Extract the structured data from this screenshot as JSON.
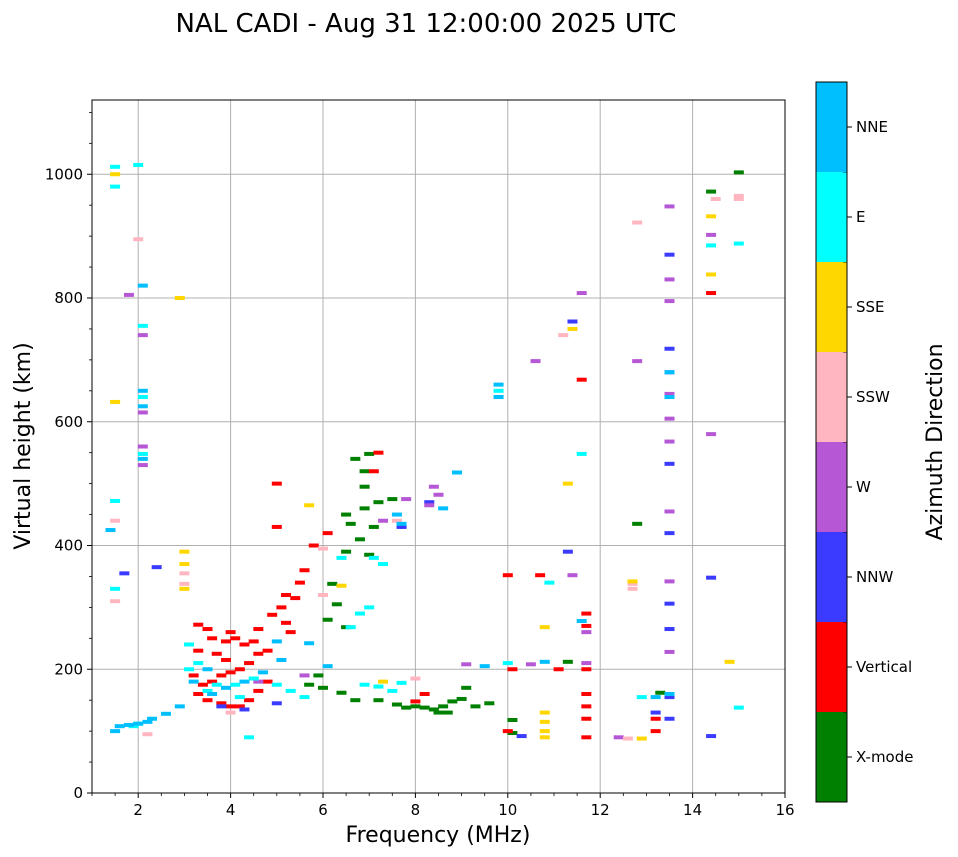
{
  "chart_data": {
    "type": "scatter",
    "title": "NAL CADI - Aug 31 12:00:00 2025 UTC",
    "xlabel": "Frequency (MHz)",
    "ylabel": "Virtual height (km)",
    "xlim": [
      1,
      16
    ],
    "ylim": [
      0,
      1120
    ],
    "xticks": [
      2,
      4,
      6,
      8,
      10,
      12,
      14,
      16
    ],
    "yticks": [
      0,
      200,
      400,
      600,
      800,
      1000
    ],
    "grid": true,
    "colorbar": {
      "label": "Azimuth Direction",
      "categories": [
        {
          "name": "X-mode",
          "color": "#008000"
        },
        {
          "name": "Vertical",
          "color": "#ff0000"
        },
        {
          "name": "NNW",
          "color": "#3b3bff"
        },
        {
          "name": "W",
          "color": "#b657d6"
        },
        {
          "name": "SSW",
          "color": "#ffb6c1"
        },
        {
          "name": "SSE",
          "color": "#ffd700"
        },
        {
          "name": "E",
          "color": "#00ffff"
        },
        {
          "name": "NNE",
          "color": "#00bfff"
        }
      ]
    },
    "series": [
      {
        "name": "X-mode",
        "points": [
          [
            6.7,
            540
          ],
          [
            7.0,
            548
          ],
          [
            6.9,
            520
          ],
          [
            6.5,
            450
          ],
          [
            6.6,
            435
          ],
          [
            6.9,
            460
          ],
          [
            7.2,
            470
          ],
          [
            7.5,
            475
          ],
          [
            6.8,
            410
          ],
          [
            7.0,
            385
          ],
          [
            6.5,
            390
          ],
          [
            6.2,
            338
          ],
          [
            6.3,
            305
          ],
          [
            6.1,
            280
          ],
          [
            6.5,
            268
          ],
          [
            5.7,
            175
          ],
          [
            6.0,
            170
          ],
          [
            6.4,
            162
          ],
          [
            6.7,
            150
          ],
          [
            7.2,
            150
          ],
          [
            7.6,
            143
          ],
          [
            7.8,
            138
          ],
          [
            8.0,
            140
          ],
          [
            8.2,
            138
          ],
          [
            8.4,
            135
          ],
          [
            8.6,
            140
          ],
          [
            8.8,
            148
          ],
          [
            9.0,
            152
          ],
          [
            8.7,
            130
          ],
          [
            8.5,
            130
          ],
          [
            9.3,
            140
          ],
          [
            9.6,
            145
          ],
          [
            9.1,
            170
          ],
          [
            10.1,
            118
          ],
          [
            10.1,
            97
          ],
          [
            11.3,
            212
          ],
          [
            12.8,
            435
          ],
          [
            13.3,
            162
          ],
          [
            14.4,
            972
          ],
          [
            15.0,
            1003
          ],
          [
            6.9,
            495
          ],
          [
            7.1,
            430
          ],
          [
            5.9,
            190
          ]
        ]
      },
      {
        "name": "Vertical",
        "points": [
          [
            3.3,
            272
          ],
          [
            3.5,
            265
          ],
          [
            3.6,
            250
          ],
          [
            3.9,
            245
          ],
          [
            4.0,
            260
          ],
          [
            4.1,
            250
          ],
          [
            4.3,
            240
          ],
          [
            4.5,
            245
          ],
          [
            4.6,
            265
          ],
          [
            4.9,
            288
          ],
          [
            5.1,
            300
          ],
          [
            5.2,
            275
          ],
          [
            5.3,
            260
          ],
          [
            5.4,
            315
          ],
          [
            5.5,
            340
          ],
          [
            5.6,
            360
          ],
          [
            5.8,
            400
          ],
          [
            5.2,
            320
          ],
          [
            4.8,
            230
          ],
          [
            4.6,
            225
          ],
          [
            4.4,
            210
          ],
          [
            4.2,
            200
          ],
          [
            4.0,
            195
          ],
          [
            3.8,
            190
          ],
          [
            3.6,
            180
          ],
          [
            3.4,
            175
          ],
          [
            3.2,
            190
          ],
          [
            3.3,
            160
          ],
          [
            3.5,
            150
          ],
          [
            3.8,
            145
          ],
          [
            4.0,
            140
          ],
          [
            4.2,
            140
          ],
          [
            4.4,
            150
          ],
          [
            4.6,
            165
          ],
          [
            4.8,
            180
          ],
          [
            3.9,
            215
          ],
          [
            3.7,
            225
          ],
          [
            3.3,
            230
          ],
          [
            5.0,
            430
          ],
          [
            5.0,
            500
          ],
          [
            6.1,
            420
          ],
          [
            7.1,
            520
          ],
          [
            7.2,
            550
          ],
          [
            8.2,
            160
          ],
          [
            8.0,
            148
          ],
          [
            10.0,
            352
          ],
          [
            10.1,
            200
          ],
          [
            10.7,
            352
          ],
          [
            11.1,
            200
          ],
          [
            11.7,
            290
          ],
          [
            11.7,
            270
          ],
          [
            11.7,
            200
          ],
          [
            11.7,
            160
          ],
          [
            11.7,
            140
          ],
          [
            11.7,
            120
          ],
          [
            11.7,
            90
          ],
          [
            13.2,
            120
          ],
          [
            13.2,
            100
          ],
          [
            14.4,
            808
          ],
          [
            11.6,
            668
          ],
          [
            10.0,
            100
          ]
        ]
      },
      {
        "name": "NNW",
        "points": [
          [
            1.7,
            355
          ],
          [
            2.4,
            365
          ],
          [
            13.5,
            870
          ],
          [
            13.5,
            718
          ],
          [
            13.5,
            680
          ],
          [
            13.5,
            532
          ],
          [
            13.5,
            420
          ],
          [
            13.5,
            306
          ],
          [
            13.5,
            265
          ],
          [
            13.5,
            155
          ],
          [
            13.5,
            120
          ],
          [
            14.4,
            348
          ],
          [
            14.4,
            92
          ],
          [
            13.2,
            130
          ],
          [
            11.4,
            762
          ],
          [
            11.3,
            390
          ],
          [
            10.3,
            92
          ],
          [
            3.8,
            140
          ],
          [
            4.3,
            135
          ],
          [
            5.0,
            145
          ],
          [
            7.7,
            430
          ],
          [
            8.3,
            470
          ]
        ]
      },
      {
        "name": "W",
        "points": [
          [
            2.1,
            740
          ],
          [
            2.1,
            615
          ],
          [
            2.1,
            560
          ],
          [
            2.1,
            530
          ],
          [
            1.8,
            805
          ],
          [
            8.4,
            495
          ],
          [
            8.5,
            482
          ],
          [
            8.3,
            465
          ],
          [
            7.8,
            475
          ],
          [
            9.1,
            208
          ],
          [
            10.5,
            208
          ],
          [
            10.6,
            698
          ],
          [
            11.6,
            808
          ],
          [
            11.7,
            260
          ],
          [
            11.7,
            210
          ],
          [
            12.4,
            90
          ],
          [
            12.8,
            698
          ],
          [
            13.5,
            948
          ],
          [
            13.5,
            830
          ],
          [
            13.5,
            795
          ],
          [
            13.5,
            645
          ],
          [
            13.5,
            605
          ],
          [
            13.5,
            568
          ],
          [
            13.5,
            455
          ],
          [
            13.5,
            342
          ],
          [
            13.5,
            228
          ],
          [
            13.5,
            160
          ],
          [
            14.4,
            580
          ],
          [
            14.4,
            902
          ],
          [
            4.6,
            180
          ],
          [
            5.6,
            190
          ],
          [
            11.4,
            352
          ],
          [
            7.3,
            440
          ]
        ]
      },
      {
        "name": "SSW",
        "points": [
          [
            1.5,
            310
          ],
          [
            1.5,
            440
          ],
          [
            2.0,
            895
          ],
          [
            3.0,
            355
          ],
          [
            3.0,
            338
          ],
          [
            6.0,
            395
          ],
          [
            6.0,
            320
          ],
          [
            7.6,
            440
          ],
          [
            8.0,
            185
          ],
          [
            11.2,
            740
          ],
          [
            12.7,
            338
          ],
          [
            12.7,
            330
          ],
          [
            12.8,
            922
          ],
          [
            14.5,
            960
          ],
          [
            15.0,
            960
          ],
          [
            15.0,
            965
          ],
          [
            12.6,
            88
          ],
          [
            2.2,
            95
          ],
          [
            4.0,
            130
          ]
        ]
      },
      {
        "name": "SSE",
        "points": [
          [
            1.5,
            632
          ],
          [
            1.5,
            1000
          ],
          [
            3.0,
            390
          ],
          [
            3.0,
            370
          ],
          [
            3.0,
            330
          ],
          [
            2.9,
            800
          ],
          [
            5.7,
            465
          ],
          [
            6.4,
            335
          ],
          [
            10.8,
            268
          ],
          [
            10.8,
            130
          ],
          [
            10.8,
            115
          ],
          [
            10.8,
            100
          ],
          [
            10.8,
            90
          ],
          [
            11.3,
            500
          ],
          [
            11.4,
            750
          ],
          [
            12.9,
            88
          ],
          [
            14.4,
            838
          ],
          [
            14.4,
            932
          ],
          [
            14.8,
            212
          ],
          [
            12.7,
            342
          ],
          [
            7.3,
            180
          ]
        ]
      },
      {
        "name": "E",
        "points": [
          [
            2.1,
            755
          ],
          [
            2.1,
            640
          ],
          [
            2.1,
            548
          ],
          [
            2.0,
            1015
          ],
          [
            1.5,
            1012
          ],
          [
            1.5,
            980
          ],
          [
            1.5,
            472
          ],
          [
            1.5,
            330
          ],
          [
            4.4,
            90
          ],
          [
            6.4,
            380
          ],
          [
            7.1,
            380
          ],
          [
            6.9,
            175
          ],
          [
            7.2,
            172
          ],
          [
            7.5,
            165
          ],
          [
            6.6,
            268
          ],
          [
            6.8,
            290
          ],
          [
            7.0,
            300
          ],
          [
            7.3,
            370
          ],
          [
            7.7,
            178
          ],
          [
            9.8,
            650
          ],
          [
            10.0,
            210
          ],
          [
            10.9,
            340
          ],
          [
            11.6,
            548
          ],
          [
            12.9,
            155
          ],
          [
            14.4,
            885
          ],
          [
            15.0,
            888
          ],
          [
            15.0,
            138
          ],
          [
            5.0,
            175
          ],
          [
            5.3,
            165
          ],
          [
            5.6,
            155
          ],
          [
            4.2,
            155
          ],
          [
            3.7,
            175
          ],
          [
            3.5,
            165
          ],
          [
            3.1,
            200
          ],
          [
            3.1,
            240
          ],
          [
            3.3,
            210
          ],
          [
            4.1,
            175
          ],
          [
            4.5,
            185
          ],
          [
            1.9,
            108
          ],
          [
            2.0,
            112
          ]
        ]
      },
      {
        "name": "NNE",
        "points": [
          [
            2.1,
            650
          ],
          [
            2.1,
            625
          ],
          [
            2.1,
            540
          ],
          [
            2.1,
            820
          ],
          [
            1.4,
            425
          ],
          [
            8.9,
            518
          ],
          [
            8.6,
            460
          ],
          [
            7.6,
            450
          ],
          [
            7.7,
            435
          ],
          [
            9.8,
            660
          ],
          [
            9.8,
            640
          ],
          [
            9.5,
            205
          ],
          [
            10.8,
            212
          ],
          [
            13.5,
            680
          ],
          [
            13.5,
            640
          ],
          [
            13.5,
            160
          ],
          [
            13.2,
            155
          ],
          [
            11.6,
            278
          ],
          [
            5.0,
            245
          ],
          [
            5.1,
            215
          ],
          [
            4.7,
            195
          ],
          [
            4.3,
            180
          ],
          [
            3.9,
            170
          ],
          [
            3.6,
            160
          ],
          [
            3.2,
            180
          ],
          [
            3.5,
            200
          ],
          [
            2.9,
            140
          ],
          [
            2.6,
            128
          ],
          [
            2.3,
            120
          ],
          [
            2.2,
            115
          ],
          [
            2.0,
            112
          ],
          [
            1.8,
            110
          ],
          [
            1.6,
            108
          ],
          [
            1.5,
            100
          ],
          [
            5.7,
            242
          ],
          [
            6.1,
            205
          ]
        ]
      }
    ]
  }
}
